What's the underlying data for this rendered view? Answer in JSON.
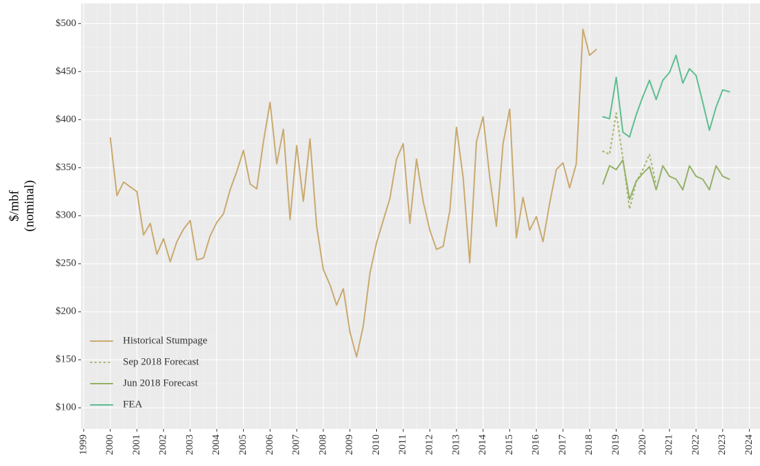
{
  "chart_data": {
    "type": "line",
    "ylabel": [
      "$/mbf",
      "(nominal)"
    ],
    "xlim": [
      1998.9,
      2024.4
    ],
    "ylim": [
      78,
      521
    ],
    "xticks": [
      1999,
      2000,
      2001,
      2002,
      2003,
      2004,
      2005,
      2006,
      2007,
      2008,
      2009,
      2010,
      2011,
      2012,
      2013,
      2014,
      2015,
      2016,
      2017,
      2018,
      2019,
      2020,
      2021,
      2022,
      2023,
      2024
    ],
    "yticks": [
      {
        "value": 100,
        "label": "$100"
      },
      {
        "value": 150,
        "label": "$150"
      },
      {
        "value": 200,
        "label": "$200"
      },
      {
        "value": 250,
        "label": "$250"
      },
      {
        "value": 300,
        "label": "$300"
      },
      {
        "value": 350,
        "label": "$350"
      },
      {
        "value": 400,
        "label": "$400"
      },
      {
        "value": 450,
        "label": "$450"
      },
      {
        "value": 500,
        "label": "$500"
      }
    ],
    "grid": true,
    "legend": "lower left",
    "series": [
      {
        "name": "Historical Stumpage",
        "color": "#c9a96e",
        "line_style": "solid",
        "x": [
          2000,
          2000.25,
          2000.5,
          2000.75,
          2001,
          2001.25,
          2001.5,
          2001.75,
          2002,
          2002.25,
          2002.5,
          2002.75,
          2003,
          2003.25,
          2003.5,
          2003.75,
          2004,
          2004.25,
          2004.5,
          2004.75,
          2005,
          2005.25,
          2005.5,
          2005.75,
          2006,
          2006.25,
          2006.5,
          2006.75,
          2007,
          2007.25,
          2007.5,
          2007.75,
          2008,
          2008.25,
          2008.5,
          2008.75,
          2009,
          2009.25,
          2009.5,
          2009.75,
          2010,
          2010.25,
          2010.5,
          2010.75,
          2011,
          2011.25,
          2011.5,
          2011.75,
          2012,
          2012.25,
          2012.5,
          2012.75,
          2013,
          2013.25,
          2013.5,
          2013.75,
          2014,
          2014.25,
          2014.5,
          2014.75,
          2015,
          2015.25,
          2015.5,
          2015.75,
          2016,
          2016.25,
          2016.5,
          2016.75,
          2017,
          2017.25,
          2017.5,
          2017.75,
          2018,
          2018.25
        ],
        "values": [
          381,
          321,
          335,
          330,
          325,
          280,
          292,
          260,
          276,
          252,
          273,
          286,
          295,
          254,
          256,
          279,
          293,
          302,
          327,
          346,
          368,
          333,
          328,
          377,
          418,
          354,
          390,
          296,
          373,
          315,
          380,
          289,
          244,
          228,
          207,
          224,
          179,
          153,
          185,
          240,
          272,
          295,
          318,
          359,
          375,
          292,
          359,
          315,
          285,
          265,
          268,
          305,
          392,
          340,
          251,
          377,
          403,
          340,
          289,
          375,
          411,
          277,
          319,
          285,
          299,
          273,
          313,
          348,
          355,
          329,
          354,
          494,
          467,
          473
        ]
      },
      {
        "name": "Sep 2018 Forecast",
        "color": "#a4b86c",
        "line_style": "dotted",
        "x": [
          2018.5,
          2018.75,
          2019,
          2019.25,
          2019.5,
          2019.75,
          2020,
          2020.25,
          2020.5
        ],
        "values": [
          367,
          364,
          407,
          360,
          307,
          335,
          348,
          364,
          332
        ]
      },
      {
        "name": "Jun 2018 Forecast",
        "color": "#93b065",
        "line_style": "solid",
        "x": [
          2018.5,
          2018.75,
          2019,
          2019.25,
          2019.5,
          2019.75,
          2020,
          2020.25,
          2020.5,
          2020.75,
          2021,
          2021.25,
          2021.5,
          2021.75,
          2022,
          2022.25,
          2022.5,
          2022.75,
          2023,
          2023.25
        ],
        "values": [
          333,
          352,
          348,
          358,
          317,
          336,
          344,
          351,
          327,
          352,
          341,
          338,
          327,
          352,
          341,
          338,
          327,
          352,
          341,
          338
        ]
      },
      {
        "name": "FEA",
        "color": "#5cbd8f",
        "line_style": "solid",
        "x": [
          2018.5,
          2018.75,
          2019,
          2019.25,
          2019.5,
          2019.75,
          2020,
          2020.25,
          2020.5,
          2020.75,
          2021,
          2021.25,
          2021.5,
          2021.75,
          2022,
          2022.25,
          2022.5,
          2022.75,
          2023,
          2023.25
        ],
        "values": [
          403,
          401,
          444,
          387,
          382,
          405,
          424,
          441,
          421,
          441,
          449,
          467,
          438,
          453,
          446,
          418,
          389,
          413,
          431,
          429
        ]
      }
    ]
  }
}
